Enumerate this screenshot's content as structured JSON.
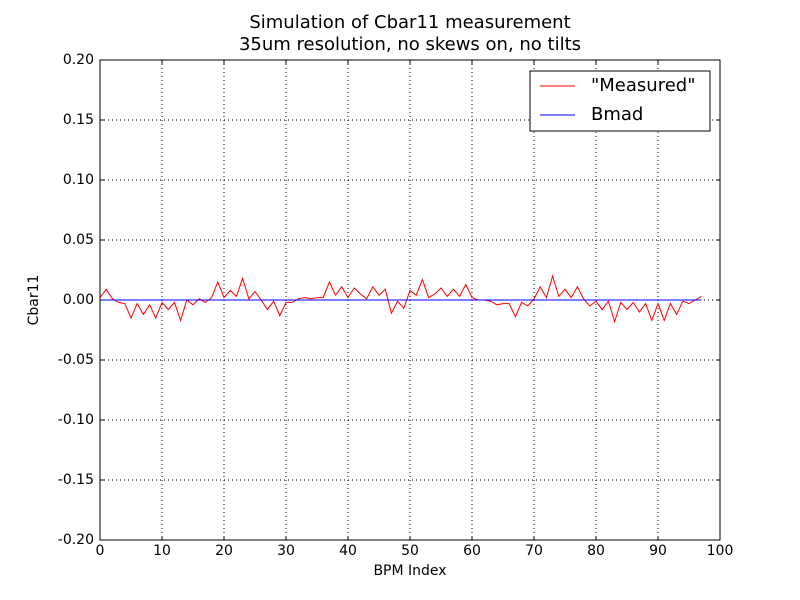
{
  "chart_data": {
    "type": "line",
    "title": "Simulation of Cbar11 measurement",
    "subtitle": "35um resolution, no skews on, no tilts",
    "x_label": "BPM Index",
    "y_label": "Cbar11",
    "x": [
      0,
      1,
      2,
      3,
      4,
      5,
      6,
      7,
      8,
      9,
      10,
      11,
      12,
      13,
      14,
      15,
      16,
      17,
      18,
      19,
      20,
      21,
      22,
      23,
      24,
      25,
      26,
      27,
      28,
      29,
      30,
      31,
      32,
      33,
      34,
      35,
      36,
      37,
      38,
      39,
      40,
      41,
      42,
      43,
      44,
      45,
      46,
      47,
      48,
      49,
      50,
      51,
      52,
      53,
      54,
      55,
      56,
      57,
      58,
      59,
      60,
      61,
      62,
      63,
      64,
      65,
      66,
      67,
      68,
      69,
      70,
      71,
      72,
      73,
      74,
      75,
      76,
      77,
      78,
      79,
      80,
      81,
      82,
      83,
      84,
      85,
      86,
      87,
      88,
      89,
      90,
      91,
      92,
      93,
      94,
      95,
      96,
      97
    ],
    "series": [
      {
        "name": "\"Measured\"",
        "color": "#ff0000",
        "values": [
          0.002,
          0.009,
          0.001,
          -0.002,
          -0.003,
          -0.015,
          -0.003,
          -0.012,
          -0.004,
          -0.015,
          -0.002,
          -0.008,
          -0.002,
          -0.017,
          0.0,
          -0.004,
          0.001,
          -0.002,
          0.002,
          0.015,
          0.002,
          0.008,
          0.003,
          0.018,
          0.001,
          0.007,
          0.0,
          -0.008,
          -0.001,
          -0.013,
          -0.002,
          -0.002,
          0.001,
          0.002,
          0.001,
          0.002,
          0.002,
          0.015,
          0.004,
          0.011,
          0.002,
          0.01,
          0.005,
          0.001,
          0.011,
          0.004,
          0.009,
          -0.011,
          -0.001,
          -0.007,
          0.008,
          0.004,
          0.017,
          0.002,
          0.005,
          0.01,
          0.003,
          0.009,
          0.003,
          0.013,
          0.002,
          0.0,
          0.0,
          -0.001,
          -0.004,
          -0.003,
          -0.003,
          -0.014,
          -0.002,
          -0.005,
          0.001,
          0.011,
          0.002,
          0.02,
          0.003,
          0.009,
          0.002,
          0.011,
          0.001,
          -0.005,
          -0.001,
          -0.008,
          -0.001,
          -0.018,
          -0.002,
          -0.008,
          -0.002,
          -0.01,
          -0.003,
          -0.017,
          -0.003,
          -0.017,
          -0.003,
          -0.012,
          -0.001,
          -0.003,
          0.0,
          0.003
        ]
      },
      {
        "name": "Bmad",
        "color": "#0000ff",
        "values": [
          0,
          0,
          0,
          0,
          0,
          0,
          0,
          0,
          0,
          0,
          0,
          0,
          0,
          0,
          0,
          0,
          0,
          0,
          0,
          0,
          0,
          0,
          0,
          0,
          0,
          0,
          0,
          0,
          0,
          0,
          0,
          0,
          0,
          0,
          0,
          0,
          0,
          0,
          0,
          0,
          0,
          0,
          0,
          0,
          0,
          0,
          0,
          0,
          0,
          0,
          0,
          0,
          0,
          0,
          0,
          0,
          0,
          0,
          0,
          0,
          0,
          0,
          0,
          0,
          0,
          0,
          0,
          0,
          0,
          0,
          0,
          0,
          0,
          0,
          0,
          0,
          0,
          0,
          0,
          0,
          0,
          0,
          0,
          0,
          0,
          0,
          0,
          0,
          0,
          0,
          0,
          0,
          0,
          0,
          0,
          0,
          0,
          0
        ]
      }
    ],
    "xlim": [
      0,
      100
    ],
    "xticks": [
      0,
      10,
      20,
      30,
      40,
      50,
      60,
      70,
      80,
      90,
      100
    ],
    "ylim": [
      -0.2,
      0.2
    ],
    "yticks": [
      {
        "value": -0.2,
        "label": "-0.20"
      },
      {
        "value": -0.15,
        "label": "-0.15"
      },
      {
        "value": -0.1,
        "label": "-0.10"
      },
      {
        "value": -0.05,
        "label": "-0.05"
      },
      {
        "value": 0,
        "label": "0.00"
      },
      {
        "value": 0.05,
        "label": "0.05"
      },
      {
        "value": 0.1,
        "label": "0.10"
      },
      {
        "value": 0.15,
        "label": "0.15"
      },
      {
        "value": 0.2,
        "label": "0.20"
      }
    ],
    "grid": true,
    "legend": "upper right"
  }
}
